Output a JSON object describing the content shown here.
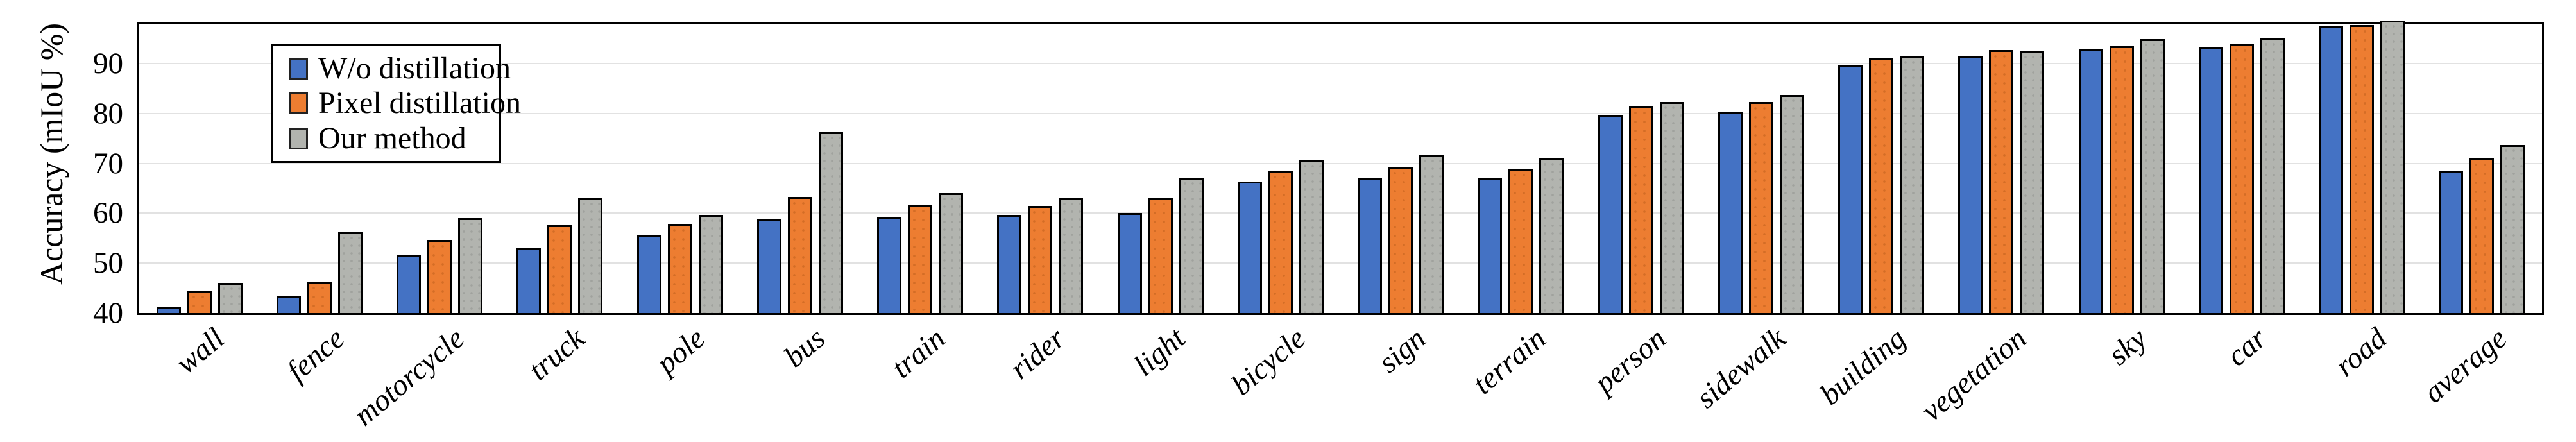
{
  "chart_data": {
    "type": "bar",
    "title": "",
    "ylabel": "Accuracy (mIoU %)",
    "categories": [
      "wall",
      "fence",
      "motorcycle",
      "truck",
      "pole",
      "bus",
      "train",
      "rider",
      "light",
      "bicycle",
      "sign",
      "terrain",
      "person",
      "sidewalk",
      "building",
      "vegetation",
      "sky",
      "car",
      "road",
      "average"
    ],
    "series": [
      {
        "name": "W/o distillation",
        "color": "#4472C4",
        "values": [
          41.2,
          43.4,
          51.6,
          53.1,
          55.7,
          58.9,
          59.1,
          59.7,
          60.0,
          66.4,
          67.0,
          67.2,
          79.6,
          80.4,
          89.8,
          91.6,
          92.9,
          93.2,
          97.6,
          68.6
        ]
      },
      {
        "name": "Pixel distillation",
        "color": "#ED7D31",
        "values": [
          44.5,
          46.3,
          54.7,
          57.6,
          57.9,
          63.3,
          61.7,
          61.5,
          63.2,
          68.6,
          69.3,
          69.0,
          81.4,
          82.3,
          91.0,
          92.7,
          93.5,
          93.9,
          97.7,
          71.0
        ]
      },
      {
        "name": "Our method",
        "color": "#B2B4AF",
        "values": [
          46.0,
          56.2,
          59.0,
          63.0,
          59.7,
          76.3,
          64.1,
          63.0,
          67.1,
          70.6,
          71.6,
          71.0,
          82.3,
          83.7,
          91.4,
          92.5,
          94.9,
          95.0,
          98.6,
          73.7
        ]
      }
    ],
    "ylim": [
      40,
      98
    ],
    "yticks": [
      40,
      50,
      60,
      70,
      80,
      90
    ],
    "grid": true,
    "legend_position": "top-left",
    "axis_color": "#000000",
    "gridline_color": "#E2E2E2"
  }
}
